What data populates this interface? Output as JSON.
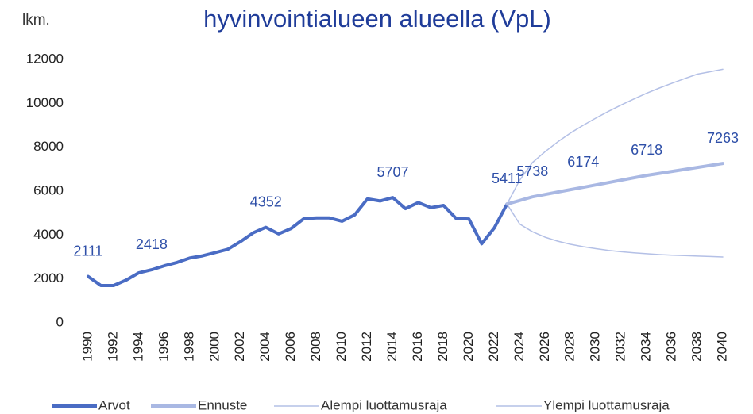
{
  "chart_data": {
    "type": "line",
    "title": "hyvinvointialueen alueella (VpL)",
    "y_label": "lkm.",
    "x": [
      1990,
      1991,
      1992,
      1993,
      1994,
      1995,
      1996,
      1997,
      1998,
      1999,
      2000,
      2001,
      2002,
      2003,
      2004,
      2005,
      2006,
      2007,
      2008,
      2009,
      2010,
      2011,
      2012,
      2013,
      2014,
      2015,
      2016,
      2017,
      2018,
      2019,
      2020,
      2021,
      2022,
      2023,
      2024,
      2025,
      2026,
      2027,
      2028,
      2029,
      2030,
      2031,
      2032,
      2033,
      2034,
      2035,
      2036,
      2037,
      2038,
      2039,
      2040
    ],
    "xlim": [
      1990,
      2040
    ],
    "xticks": [
      1990,
      1992,
      1994,
      1996,
      1998,
      2000,
      2002,
      2004,
      2006,
      2008,
      2010,
      2012,
      2014,
      2016,
      2018,
      2020,
      2022,
      2024,
      2026,
      2028,
      2030,
      2032,
      2034,
      2036,
      2038,
      2040
    ],
    "ylim": [
      0,
      12000
    ],
    "yticks": [
      0,
      2000,
      4000,
      6000,
      8000,
      10000,
      12000
    ],
    "grid": false,
    "legend": "bottom",
    "series": [
      {
        "name": "Arvot",
        "color": "#4a6cc4",
        "width": 4,
        "values": [
          2111,
          1700,
          1700,
          1950,
          2280,
          2418,
          2600,
          2750,
          2950,
          3050,
          3200,
          3350,
          3700,
          4100,
          4352,
          4050,
          4300,
          4750,
          4780,
          4780,
          4630,
          4920,
          5650,
          5550,
          5707,
          5200,
          5480,
          5250,
          5350,
          4750,
          4730,
          3600,
          4330,
          5411,
          null,
          null,
          null,
          null,
          null,
          null,
          null,
          null,
          null,
          null,
          null,
          null,
          null,
          null,
          null,
          null,
          null
        ],
        "value_labels": [
          "2111",
          null,
          null,
          null,
          null,
          "2418",
          null,
          null,
          null,
          null,
          null,
          null,
          null,
          null,
          "4352",
          null,
          null,
          null,
          null,
          null,
          null,
          null,
          null,
          null,
          "5707",
          null,
          null,
          null,
          null,
          null,
          null,
          null,
          null,
          "5411",
          null,
          null,
          null,
          null,
          null,
          null,
          null,
          null,
          null,
          null,
          null,
          null,
          null,
          null,
          null,
          null,
          null
        ]
      },
      {
        "name": "Ennuste",
        "color": "#a9b8e3",
        "width": 4,
        "values": [
          null,
          null,
          null,
          null,
          null,
          null,
          null,
          null,
          null,
          null,
          null,
          null,
          null,
          null,
          null,
          null,
          null,
          null,
          null,
          null,
          null,
          null,
          null,
          null,
          null,
          null,
          null,
          null,
          null,
          null,
          null,
          null,
          null,
          5411,
          5575,
          5738,
          5850,
          5960,
          6068,
          6174,
          6283,
          6392,
          6501,
          6610,
          6718,
          6808,
          6899,
          6990,
          7081,
          7172,
          7263
        ],
        "value_labels": [
          null,
          null,
          null,
          null,
          null,
          null,
          null,
          null,
          null,
          null,
          null,
          null,
          null,
          null,
          null,
          null,
          null,
          null,
          null,
          null,
          null,
          null,
          null,
          null,
          null,
          null,
          null,
          null,
          null,
          null,
          null,
          null,
          null,
          null,
          null,
          "5738",
          null,
          null,
          null,
          "6174",
          null,
          null,
          null,
          null,
          "6718",
          null,
          null,
          null,
          null,
          null,
          "7263"
        ]
      },
      {
        "name": "Alempi luottamusraja",
        "color": "#b4c0e6",
        "width": 1.5,
        "values": [
          null,
          null,
          null,
          null,
          null,
          null,
          null,
          null,
          null,
          null,
          null,
          null,
          null,
          null,
          null,
          null,
          null,
          null,
          null,
          null,
          null,
          null,
          null,
          null,
          null,
          null,
          null,
          null,
          null,
          null,
          null,
          null,
          null,
          5411,
          4500,
          4150,
          3900,
          3720,
          3580,
          3470,
          3380,
          3300,
          3240,
          3190,
          3150,
          3110,
          3080,
          3060,
          3040,
          3020,
          3000
        ]
      },
      {
        "name": "Ylempi luottamusraja",
        "color": "#b4c0e6",
        "width": 1.5,
        "values": [
          null,
          null,
          null,
          null,
          null,
          null,
          null,
          null,
          null,
          null,
          null,
          null,
          null,
          null,
          null,
          null,
          null,
          null,
          null,
          null,
          null,
          null,
          null,
          null,
          null,
          null,
          null,
          null,
          null,
          null,
          null,
          null,
          null,
          5411,
          6500,
          7300,
          7800,
          8250,
          8650,
          9000,
          9330,
          9640,
          9930,
          10200,
          10460,
          10700,
          10920,
          11130,
          11330,
          11440,
          11550
        ]
      }
    ]
  }
}
